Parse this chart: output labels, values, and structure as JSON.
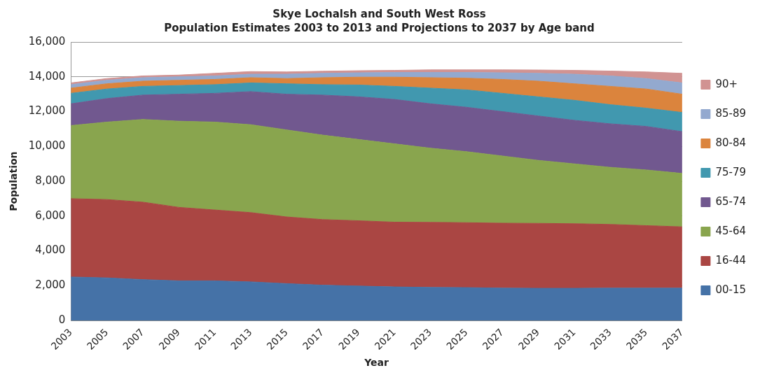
{
  "chart_data": {
    "type": "area",
    "title": "Skye Lochalsh and South West Ross",
    "subtitle": "Population Estimates 2003 to 2013 and Projections to 2037 by Age band",
    "xlabel": "Year",
    "ylabel": "Population",
    "x": [
      2003,
      2005,
      2007,
      2009,
      2011,
      2013,
      2015,
      2017,
      2019,
      2021,
      2023,
      2025,
      2027,
      2029,
      2031,
      2033,
      2035,
      2037
    ],
    "xlim": [
      2003,
      2037
    ],
    "xticks": [
      2003,
      2005,
      2007,
      2009,
      2011,
      2013,
      2015,
      2017,
      2019,
      2021,
      2023,
      2025,
      2027,
      2029,
      2031,
      2033,
      2035,
      2037
    ],
    "ylim": [
      0,
      16000
    ],
    "yticks": [
      {
        "value": 0,
        "label": "0"
      },
      {
        "value": 2000,
        "label": "2,000"
      },
      {
        "value": 4000,
        "label": "4,000"
      },
      {
        "value": 6000,
        "label": "6,000"
      },
      {
        "value": 8000,
        "label": "8,000"
      },
      {
        "value": 10000,
        "label": "10,000"
      },
      {
        "value": 12000,
        "label": "12,000"
      },
      {
        "value": 14000,
        "label": "14,000"
      },
      {
        "value": 16000,
        "label": "16,000"
      }
    ],
    "stacked": true,
    "grid": "y",
    "legend": "right",
    "series": [
      {
        "name": "00-15",
        "color": "#4572a7",
        "values": [
          2500,
          2450,
          2350,
          2280,
          2280,
          2220,
          2120,
          2030,
          1980,
          1930,
          1900,
          1890,
          1860,
          1850,
          1850,
          1860,
          1860,
          1860
        ]
      },
      {
        "name": "16-44",
        "color": "#aa4643",
        "values": [
          4500,
          4500,
          4450,
          4220,
          4070,
          3980,
          3830,
          3770,
          3750,
          3720,
          3740,
          3730,
          3730,
          3730,
          3710,
          3660,
          3590,
          3520
        ]
      },
      {
        "name": "45-64",
        "color": "#89a54e",
        "values": [
          4200,
          4450,
          4750,
          4950,
          5050,
          5050,
          5000,
          4850,
          4670,
          4500,
          4260,
          4080,
          3860,
          3620,
          3440,
          3280,
          3200,
          3070
        ]
      },
      {
        "name": "65-74",
        "color": "#71588f",
        "values": [
          1250,
          1350,
          1400,
          1550,
          1650,
          1900,
          2050,
          2300,
          2450,
          2550,
          2550,
          2550,
          2550,
          2550,
          2500,
          2500,
          2500,
          2400
        ]
      },
      {
        "name": "75-79",
        "color": "#4198af",
        "values": [
          600,
          550,
          500,
          500,
          500,
          500,
          600,
          600,
          680,
          750,
          900,
          1000,
          1050,
          1100,
          1150,
          1100,
          1050,
          1100
        ]
      },
      {
        "name": "80-84",
        "color": "#db843d",
        "values": [
          300,
          300,
          300,
          300,
          300,
          300,
          300,
          400,
          450,
          530,
          600,
          670,
          800,
          900,
          950,
          1050,
          1100,
          1050
        ]
      },
      {
        "name": "85-89",
        "color": "#93a9cf",
        "values": [
          200,
          200,
          200,
          200,
          200,
          200,
          250,
          250,
          250,
          270,
          300,
          330,
          380,
          450,
          550,
          600,
          600,
          650
        ]
      },
      {
        "name": "90+",
        "color": "#d19392",
        "values": [
          100,
          100,
          100,
          100,
          150,
          150,
          130,
          120,
          120,
          120,
          150,
          150,
          170,
          190,
          220,
          280,
          380,
          550
        ]
      }
    ]
  }
}
